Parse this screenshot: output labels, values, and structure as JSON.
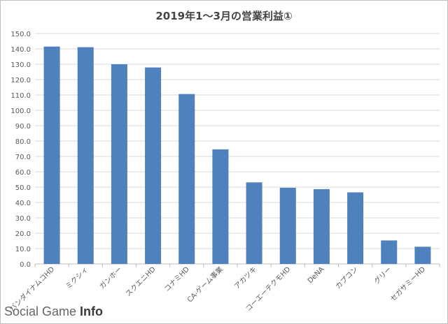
{
  "chart_data": {
    "type": "bar",
    "title": "2019年1～3月の営業利益①",
    "categories": [
      "バンダイナムコHD",
      "ミクシィ",
      "ガンホー",
      "スクエニHD",
      "コナミHD",
      "CA-ゲーム事業",
      "アカツキ",
      "コーエーテクモHD",
      "DeNA",
      "カプコン",
      "グリー",
      "セガサミーHD"
    ],
    "values": [
      141.5,
      141.1,
      130.0,
      127.9,
      110.6,
      74.6,
      53.1,
      49.6,
      48.7,
      46.6,
      15.3,
      11.2
    ],
    "ylim": [
      0,
      150
    ],
    "yticks": [
      "0.0",
      "10.0",
      "20.0",
      "30.0",
      "40.0",
      "50.0",
      "60.0",
      "70.0",
      "80.0",
      "90.0",
      "100.0",
      "110.0",
      "120.0",
      "130.0",
      "140.0",
      "150.0"
    ],
    "xlabel": "",
    "ylabel": "",
    "grid": true,
    "bar_color": "#4f81bd"
  },
  "watermark": {
    "text_main": "Social Game ",
    "text_accent": "Info"
  }
}
